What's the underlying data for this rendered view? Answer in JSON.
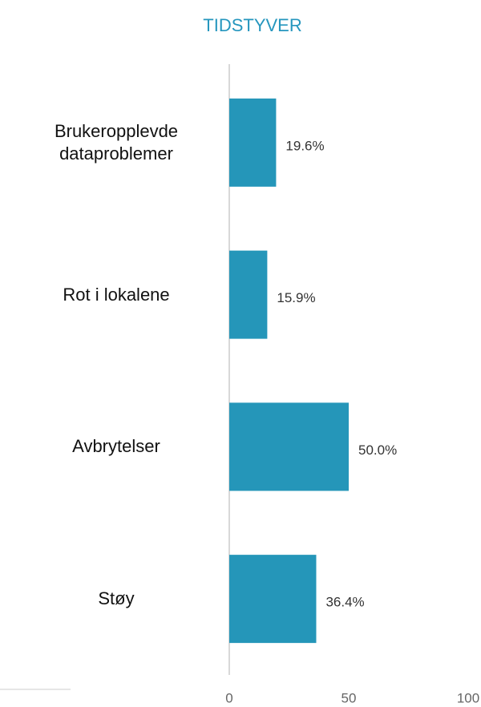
{
  "chart_data": {
    "type": "barh",
    "title": "TIDSTYVER",
    "categories": [
      "Brukeropplevde dataproblemer",
      "Rot i lokalene",
      "Avbrytelser",
      "Støy"
    ],
    "values": [
      19.6,
      15.9,
      50.0,
      36.4
    ],
    "value_labels": [
      "19.6%",
      "15.9%",
      "50.0%",
      "36.4%"
    ],
    "color": "#2596b9",
    "xlim": [
      0,
      100
    ],
    "xticks": [
      0,
      50,
      100
    ],
    "grid": false
  }
}
